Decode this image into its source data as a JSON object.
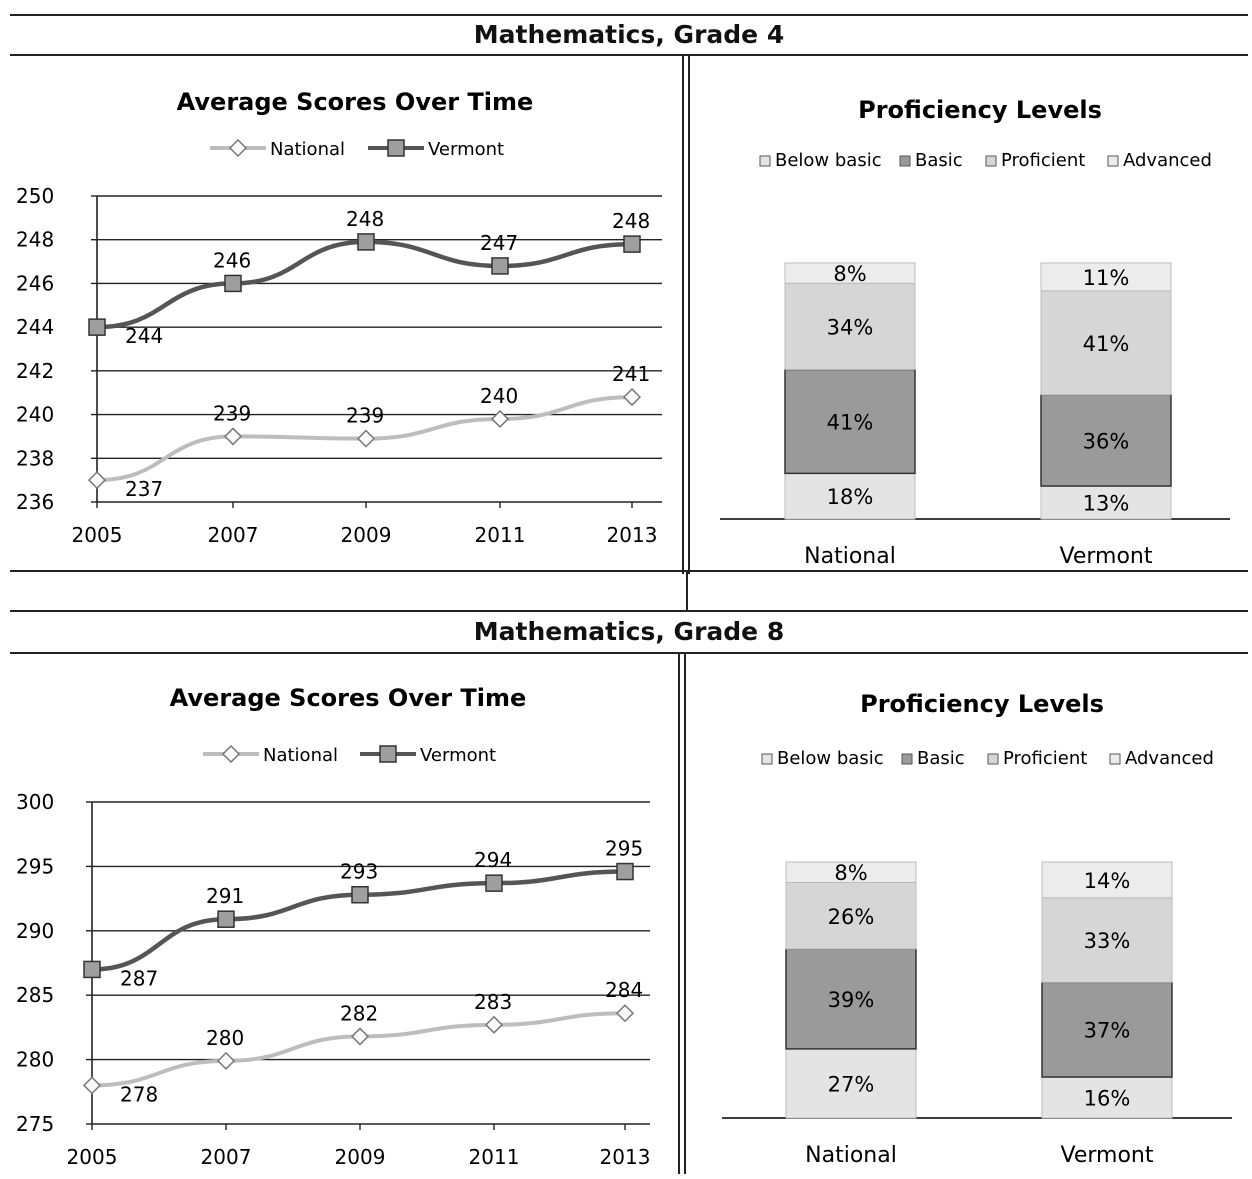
{
  "sections": [
    {
      "title": "Mathematics, Grade 4",
      "line_chart": {
        "title": "Average Scores Over Time",
        "legend": [
          "National",
          "Vermont"
        ]
      },
      "bar_chart": {
        "title": "Proficiency Levels",
        "legend": [
          "Below basic",
          "Basic",
          "Proficient",
          "Advanced"
        ]
      }
    },
    {
      "title": "Mathematics, Grade 8",
      "line_chart": {
        "title": "Average Scores Over Time",
        "legend": [
          "National",
          "Vermont"
        ]
      },
      "bar_chart": {
        "title": "Proficiency Levels",
        "legend": [
          "Below basic",
          "Basic",
          "Proficient",
          "Advanced"
        ]
      }
    }
  ],
  "colors": {
    "national_line": "#bdbdbd",
    "vermont_line": "#555555",
    "below_basic": "#e4e4e4",
    "basic": "#9a9a9a",
    "proficient": "#d6d6d6",
    "advanced": "#ececec"
  },
  "chart_data": [
    {
      "type": "line",
      "title": "Average Scores Over Time",
      "x": [
        "2005",
        "2007",
        "2009",
        "2011",
        "2013"
      ],
      "ylim": [
        236,
        250
      ],
      "yticks": [
        236,
        238,
        240,
        242,
        244,
        246,
        248,
        250
      ],
      "series": [
        {
          "name": "National",
          "values": [
            237,
            239,
            239,
            240,
            241
          ],
          "markers": [
            237,
            239,
            238.9,
            239.8,
            240.8
          ]
        },
        {
          "name": "Vermont",
          "values": [
            244,
            246,
            248,
            247,
            248
          ],
          "markers": [
            244,
            246,
            247.9,
            246.8,
            247.8
          ]
        }
      ],
      "grid": true,
      "legend_position": "top"
    },
    {
      "type": "bar",
      "stacked": true,
      "title": "Proficiency Levels",
      "categories": [
        "National",
        "Vermont"
      ],
      "series": [
        {
          "name": "Below basic",
          "values": [
            18,
            13
          ],
          "labels": [
            "18%",
            "13%"
          ]
        },
        {
          "name": "Basic",
          "values": [
            41,
            36
          ],
          "labels": [
            "41%",
            "36%"
          ]
        },
        {
          "name": "Proficient",
          "values": [
            34,
            41
          ],
          "labels": [
            "34%",
            "41%"
          ]
        },
        {
          "name": "Advanced",
          "values": [
            8,
            11
          ],
          "labels": [
            "8%",
            "11%"
          ]
        }
      ],
      "legend_position": "top"
    },
    {
      "type": "line",
      "title": "Average Scores Over Time",
      "x": [
        "2005",
        "2007",
        "2009",
        "2011",
        "2013"
      ],
      "ylim": [
        275,
        300
      ],
      "yticks": [
        275,
        280,
        285,
        290,
        295,
        300
      ],
      "series": [
        {
          "name": "National",
          "values": [
            278,
            280,
            282,
            283,
            284
          ],
          "markers": [
            278,
            279.9,
            281.8,
            282.7,
            283.6
          ]
        },
        {
          "name": "Vermont",
          "values": [
            287,
            291,
            293,
            294,
            295
          ],
          "markers": [
            287,
            290.9,
            292.8,
            293.7,
            294.6
          ]
        }
      ],
      "grid": true,
      "legend_position": "top"
    },
    {
      "type": "bar",
      "stacked": true,
      "title": "Proficiency Levels",
      "categories": [
        "National",
        "Vermont"
      ],
      "series": [
        {
          "name": "Below basic",
          "values": [
            27,
            16
          ],
          "labels": [
            "27%",
            "16%"
          ]
        },
        {
          "name": "Basic",
          "values": [
            39,
            37
          ],
          "labels": [
            "39%",
            "37%"
          ]
        },
        {
          "name": "Proficient",
          "values": [
            26,
            33
          ],
          "labels": [
            "26%",
            "33%"
          ]
        },
        {
          "name": "Advanced",
          "values": [
            8,
            14
          ],
          "labels": [
            "8%",
            "14%"
          ]
        }
      ],
      "legend_position": "top"
    }
  ]
}
